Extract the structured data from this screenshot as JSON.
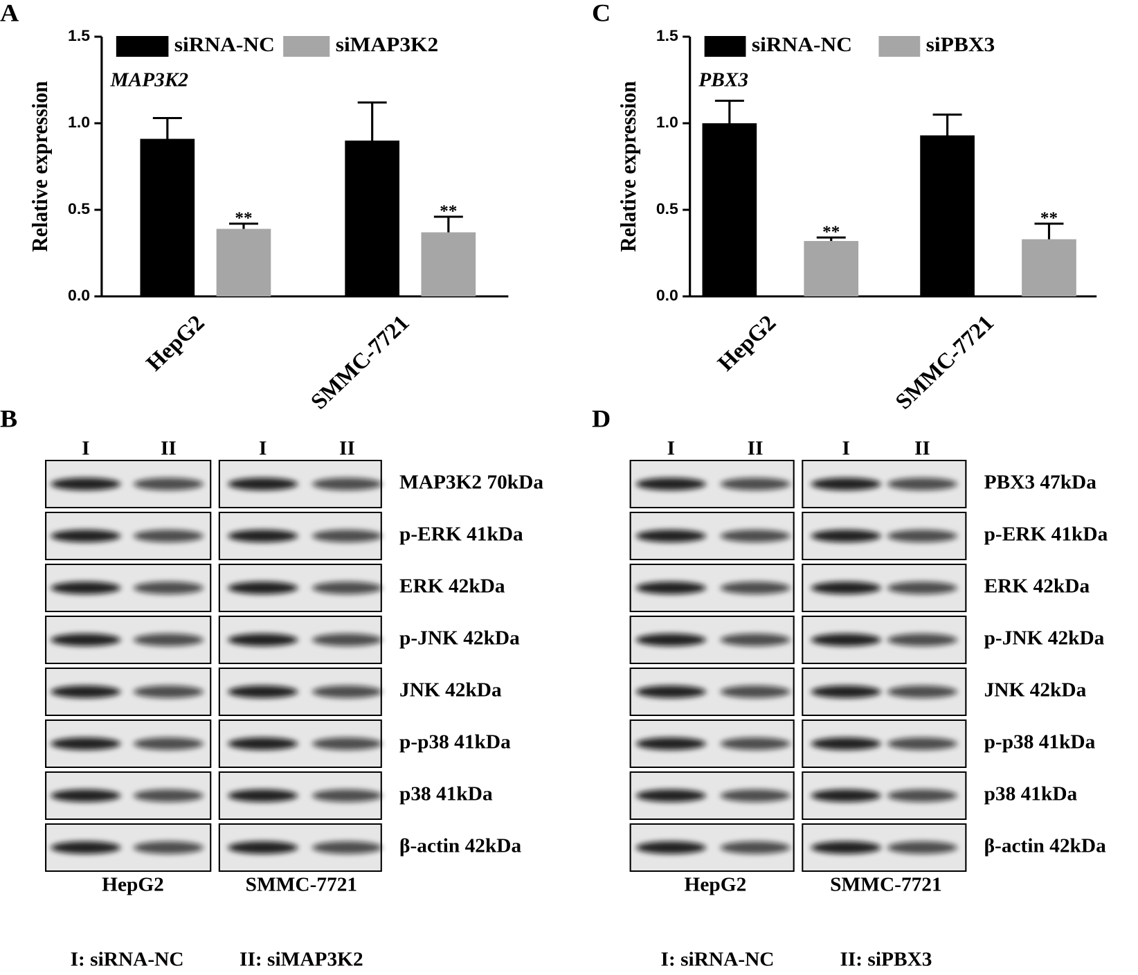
{
  "chart_data": [
    {
      "type": "bar",
      "panel": "A",
      "gene_label": "MAP3K2",
      "y_label": "Relative expression",
      "categories": [
        "HepG2",
        "SMMC-7721"
      ],
      "series": [
        {
          "name": "siRNA-NC",
          "color": "#000000",
          "values": [
            0.91,
            0.9
          ],
          "errors": [
            0.12,
            0.22
          ]
        },
        {
          "name": "siMAP3K2",
          "color": "#a6a6a6",
          "values": [
            0.39,
            0.37
          ],
          "errors": [
            0.03,
            0.09
          ],
          "annotations": [
            "**",
            "**"
          ]
        }
      ],
      "ylim": [
        0,
        1.5
      ],
      "yticks": [
        {
          "value": 0,
          "label": "0.0"
        },
        {
          "value": 0.5,
          "label": "0.5"
        },
        {
          "value": 1,
          "label": "1.0"
        },
        {
          "value": 1.5,
          "label": "1.5"
        }
      ]
    },
    {
      "type": "bar",
      "panel": "C",
      "gene_label": "PBX3",
      "y_label": "Relative expression",
      "categories": [
        "HepG2",
        "SMMC-7721"
      ],
      "series": [
        {
          "name": "siRNA-NC",
          "color": "#000000",
          "values": [
            1.0,
            0.93
          ],
          "errors": [
            0.13,
            0.12
          ]
        },
        {
          "name": "siPBX3",
          "color": "#a6a6a6",
          "values": [
            0.32,
            0.33
          ],
          "errors": [
            0.02,
            0.09
          ],
          "annotations": [
            "**",
            "**"
          ]
        }
      ],
      "ylim": [
        0,
        1.5
      ],
      "yticks": [
        {
          "value": 0,
          "label": "0.0"
        },
        {
          "value": 0.5,
          "label": "0.5"
        },
        {
          "value": 1,
          "label": "1.0"
        },
        {
          "value": 1.5,
          "label": "1.5"
        }
      ]
    }
  ],
  "blots": [
    {
      "panel": "B",
      "lanes": [
        "I",
        "II",
        "I",
        "II"
      ],
      "proteins": [
        "MAP3K2 70kDa",
        "p-ERK 41kDa",
        "ERK 42kDa",
        "p-JNK 42kDa",
        "JNK 42kDa",
        "p-p38 41kDa",
        "p38 41kDa",
        "β-actin 42kDa"
      ],
      "cells": [
        "HepG2",
        "SMMC-7721"
      ],
      "legend": [
        "I: siRNA-NC",
        "II: siMAP3K2"
      ]
    },
    {
      "panel": "D",
      "lanes": [
        "I",
        "II",
        "I",
        "II"
      ],
      "proteins": [
        "PBX3 47kDa",
        "p-ERK 41kDa",
        "ERK 42kDa",
        "p-JNK 42kDa",
        "JNK 42kDa",
        "p-p38 41kDa",
        "p38 41kDa",
        "β-actin 42kDa"
      ],
      "cells": [
        "HepG2",
        "SMMC-7721"
      ],
      "legend": [
        "I: siRNA-NC",
        "II: siPBX3"
      ]
    }
  ]
}
